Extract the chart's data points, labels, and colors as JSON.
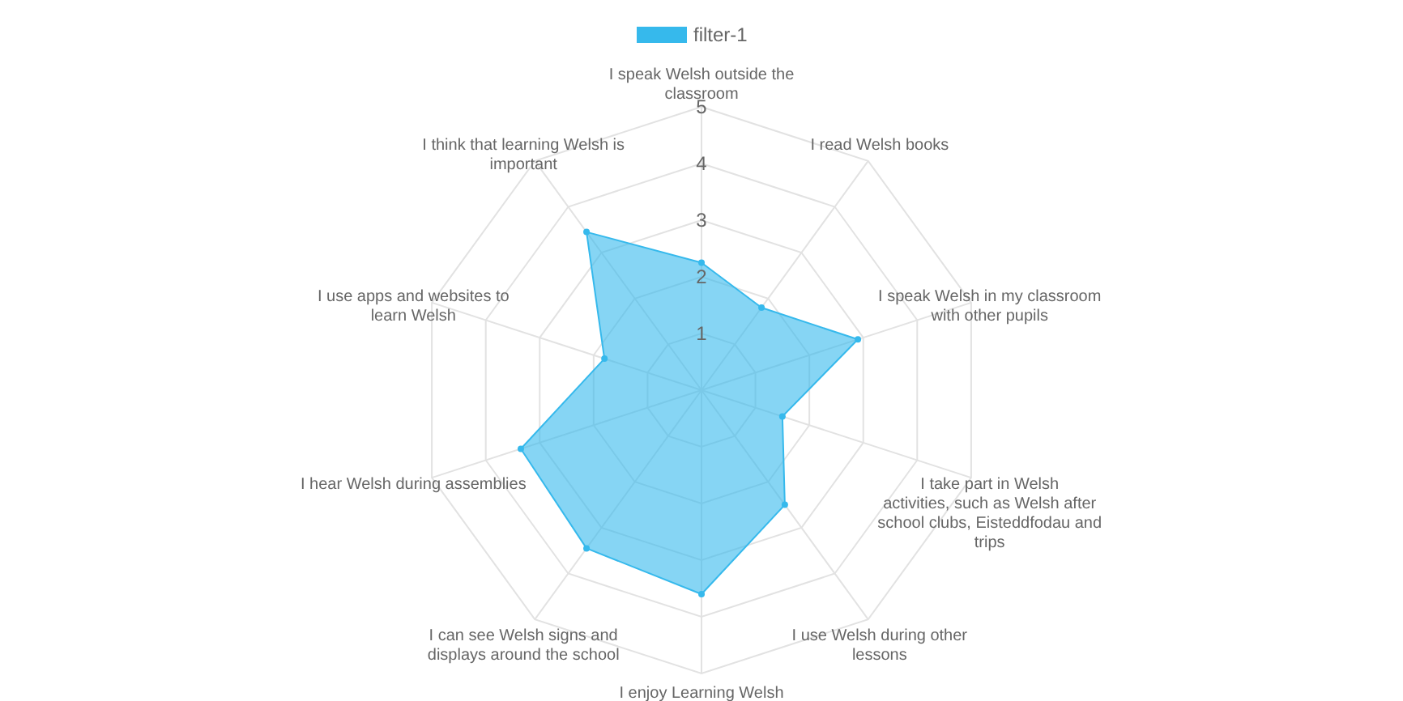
{
  "chart_data": {
    "type": "radar",
    "categories": [
      "I speak Welsh outside the classroom",
      "I read Welsh books",
      "I speak Welsh in my classroom with other pupils",
      "I take part in Welsh activities, such as Welsh after school clubs, Eisteddfodau and trips",
      "I use Welsh during other lessons",
      "I enjoy Learning Welsh",
      "I can see Welsh signs and displays around the school",
      "I hear Welsh during assemblies",
      "I use apps and websites to learn Welsh",
      "I think that learning Welsh is important"
    ],
    "series": [
      {
        "name": "filter-1",
        "color": "#36b9ec",
        "values": [
          2.25,
          1.8,
          2.9,
          1.5,
          2.5,
          3.6,
          3.45,
          3.35,
          1.8,
          3.45
        ]
      }
    ],
    "ylim": [
      0,
      5
    ],
    "yticks": [
      1,
      2,
      3,
      4,
      5
    ],
    "grid": true,
    "legend": "top",
    "marker": "circle"
  }
}
